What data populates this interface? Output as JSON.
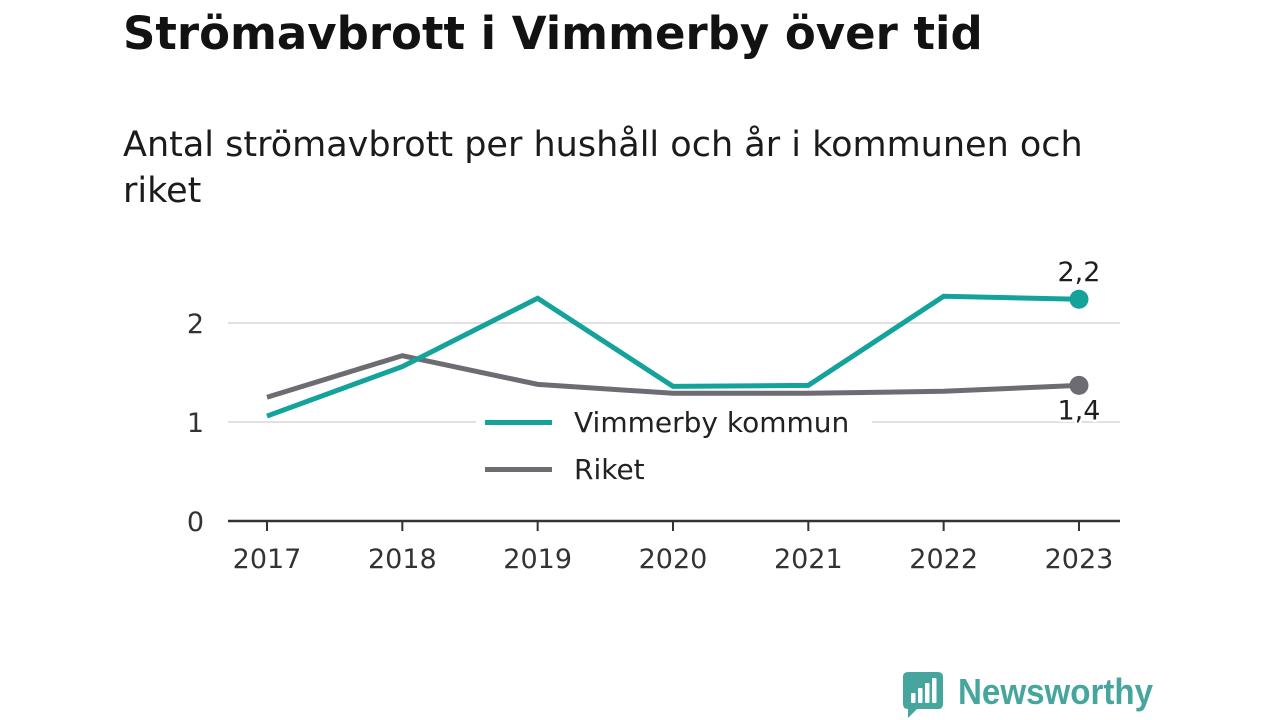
{
  "chart_data": {
    "type": "line",
    "title": "Strömavbrott i Vimmerby över tid",
    "subtitle": "Antal strömavbrott per hushåll och år i kommunen och riket",
    "categories": [
      "2017",
      "2018",
      "2019",
      "2020",
      "2021",
      "2022",
      "2023"
    ],
    "series": [
      {
        "name": "Vimmerby kommun",
        "color": "#14a39a",
        "values": [
          1.06,
          1.56,
          2.25,
          1.36,
          1.37,
          2.27,
          2.24
        ],
        "end_label": "2,2"
      },
      {
        "name": "Riket",
        "color": "#6e6c73",
        "values": [
          1.25,
          1.67,
          1.38,
          1.29,
          1.29,
          1.31,
          1.37
        ],
        "end_label": "1,4"
      }
    ],
    "yticks": [
      0,
      1,
      2
    ],
    "ylim": [
      0,
      2.5
    ],
    "grid": true,
    "legend": "center"
  },
  "branding": {
    "logo_text": "Newsworthy",
    "logo_icon": "bar-chart-bubble-icon",
    "color": "#46a69d"
  }
}
